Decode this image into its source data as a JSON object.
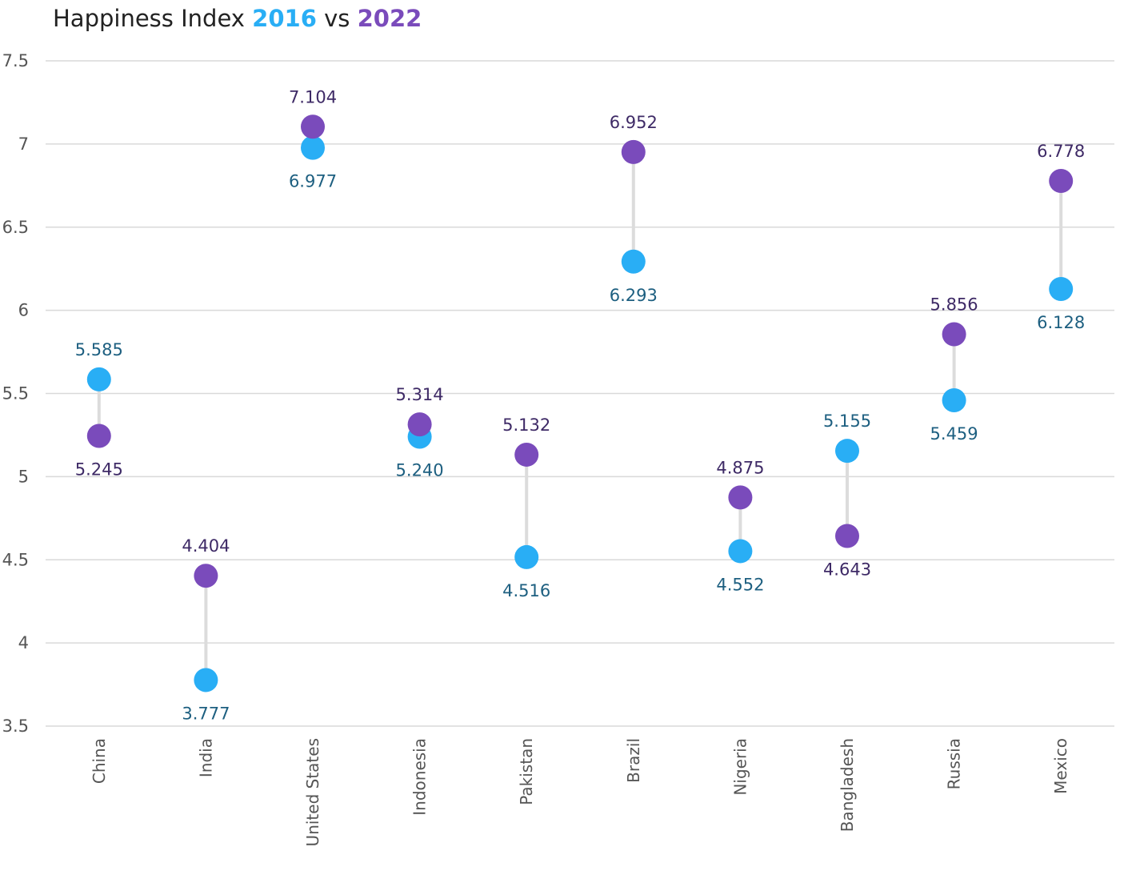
{
  "chart_data": {
    "type": "dumbbell",
    "title": {
      "prefix": "Happiness Index",
      "series_a": "2016",
      "joiner": "vs",
      "series_b": "2022"
    },
    "ylim": [
      3.5,
      7.5
    ],
    "yticks": [
      "3.5",
      "4",
      "4.5",
      "5",
      "5.5",
      "6",
      "6.5",
      "7",
      "7.5"
    ],
    "grid": true,
    "categories": [
      "China",
      "India",
      "United States",
      "Indonesia",
      "Pakistan",
      "Brazil",
      "Nigeria",
      "Bangladesh",
      "Russia",
      "Mexico"
    ],
    "series": [
      {
        "name": "2016",
        "color": "#29aef5",
        "label_color": "#1d5f80",
        "values": [
          5.585,
          3.777,
          6.977,
          5.24,
          4.516,
          6.293,
          4.552,
          5.155,
          5.459,
          6.128
        ]
      },
      {
        "name": "2022",
        "color": "#7a4bbb",
        "label_color": "#3e2a66",
        "values": [
          5.245,
          4.404,
          7.104,
          5.314,
          5.132,
          6.952,
          4.875,
          4.643,
          5.856,
          6.778
        ]
      }
    ],
    "connector_color": "#dcdcdc",
    "gridline_color": "#d9d9d9"
  }
}
